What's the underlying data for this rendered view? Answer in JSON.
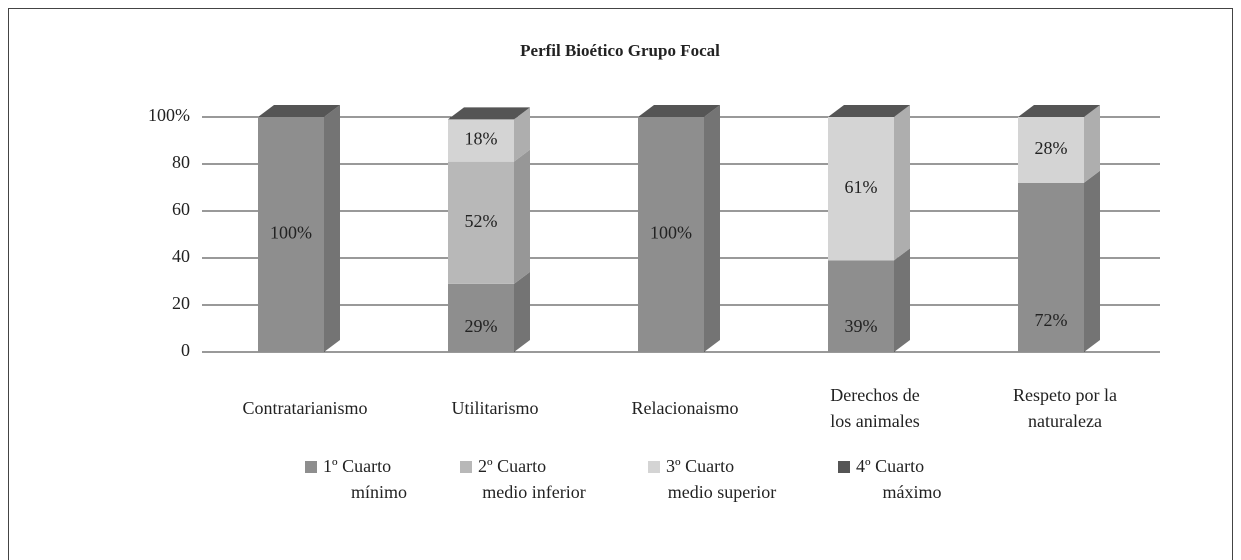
{
  "chart_data": {
    "type": "stacked_bar_3d",
    "title": "Perfil Bioético Grupo Focal",
    "categories": [
      "Contratarianismo",
      "Utilitarismo",
      "Relacionaismo",
      "Derechos de los animales",
      "Respeto por la naturaleza"
    ],
    "series": [
      {
        "name": "1º Cuarto mínimo",
        "color": "#8e8e8e",
        "values": [
          100,
          29,
          100,
          39,
          72
        ],
        "value_labels": [
          "100%",
          "29%",
          "100%",
          "39%",
          "72%"
        ]
      },
      {
        "name": "2º Cuarto medio inferior",
        "color": "#b8b8b8",
        "values": [
          0,
          52,
          0,
          0,
          0
        ],
        "value_labels": [
          null,
          "52%",
          null,
          null,
          null
        ]
      },
      {
        "name": "3º Cuarto medio superior",
        "color": "#d4d4d4",
        "values": [
          0,
          18,
          0,
          61,
          28
        ],
        "value_labels": [
          null,
          "18%",
          null,
          "61%",
          "28%"
        ]
      },
      {
        "name": "4º Cuarto máximo",
        "color": "#555555",
        "values": [
          0,
          0,
          0,
          0,
          0
        ],
        "value_labels": [
          null,
          null,
          null,
          null,
          null
        ]
      }
    ],
    "ylim": [
      0,
      100
    ],
    "yticks": [
      0,
      20,
      40,
      60,
      80,
      {
        "value": 100,
        "label": "100%"
      }
    ],
    "grid": true
  }
}
